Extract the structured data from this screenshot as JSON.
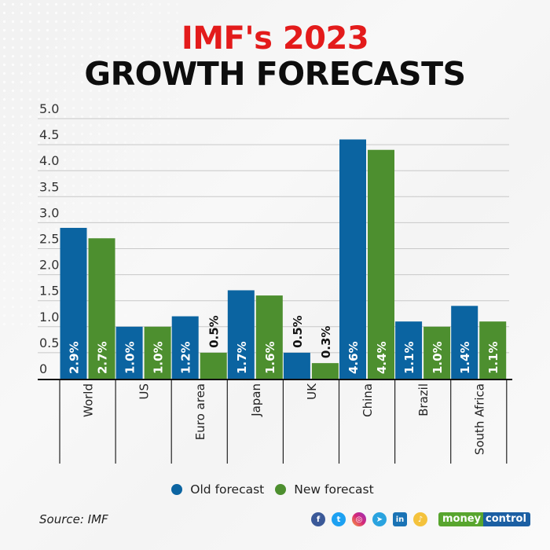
{
  "header": {
    "title_line1": "IMF's 2023",
    "title_line2": "GROWTH FORECASTS"
  },
  "colors": {
    "old": "#0b64a1",
    "new": "#4d8f2f",
    "title_red": "#e31b1b"
  },
  "chart_data": {
    "type": "bar",
    "title": "IMF's 2023 GROWTH FORECASTS",
    "xlabel": "",
    "ylabel": "",
    "ylim": [
      0,
      5.0
    ],
    "yticks": [
      0,
      0.5,
      1.0,
      1.5,
      2.0,
      2.5,
      3.0,
      3.5,
      4.0,
      4.5,
      5.0
    ],
    "ytick_labels": [
      "0",
      "0.5",
      "1.0",
      "1.5",
      "2.0",
      "2.5",
      "3.0",
      "3.5",
      "4.0",
      "4.5",
      "5.0"
    ],
    "grid": true,
    "legend_position": "bottom-center",
    "categories": [
      "World",
      "US",
      "Euro area",
      "Japan",
      "UK",
      "China",
      "Brazil",
      "South Africa"
    ],
    "series": [
      {
        "name": "Old forecast",
        "values": [
          2.9,
          1.0,
          1.2,
          1.7,
          0.5,
          4.6,
          1.1,
          1.4
        ],
        "labels": [
          "2.9%",
          "1.0%",
          "1.2%",
          "1.7%",
          "0.5%",
          "4.6%",
          "1.1%",
          "1.4%"
        ]
      },
      {
        "name": "New forecast",
        "values": [
          2.7,
          1.0,
          0.5,
          1.6,
          0.3,
          4.4,
          1.0,
          1.1
        ],
        "labels": [
          "2.7%",
          "1.0%",
          "0.5%",
          "1.6%",
          "0.3%",
          "4.4%",
          "1.0%",
          "1.1%"
        ]
      }
    ]
  },
  "legend": {
    "items": [
      {
        "label": "Old forecast",
        "color": "#0b64a1"
      },
      {
        "label": "New forecast",
        "color": "#4d8f2f"
      }
    ]
  },
  "footer": {
    "source": "Source: IMF",
    "social_icons": [
      "facebook-icon",
      "twitter-icon",
      "instagram-icon",
      "telegram-icon",
      "linkedin-icon",
      "koo-icon"
    ],
    "brand_part1": "money",
    "brand_part2": "control"
  }
}
